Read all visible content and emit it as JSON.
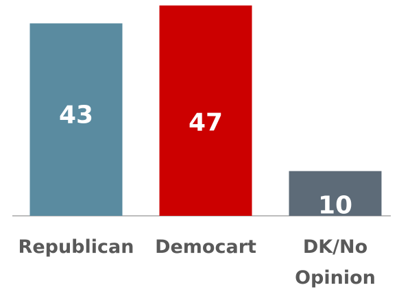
{
  "chart_data": {
    "type": "bar",
    "categories": [
      "Republican",
      "Democart",
      "DK/No Opinion"
    ],
    "category_lines": [
      [
        "Republican"
      ],
      [
        "Democart"
      ],
      [
        "DK/No",
        "Opinion"
      ]
    ],
    "values": [
      43,
      47,
      10
    ],
    "data_labels": [
      "43",
      "47",
      "10"
    ],
    "colors": [
      "#5a8ba0",
      "#cc0000",
      "#5d6b78"
    ],
    "title": "",
    "xlabel": "",
    "ylabel": "",
    "ylim": [
      0,
      47
    ],
    "grid": false,
    "legend": "none"
  }
}
